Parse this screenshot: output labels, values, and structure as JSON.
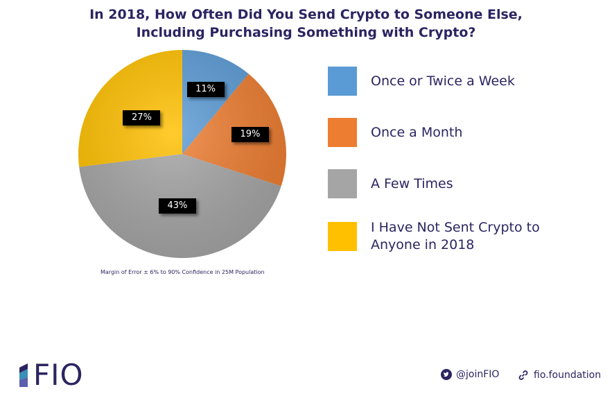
{
  "chart_data": {
    "type": "pie",
    "title_line1": "In 2018, How Often Did You Send Crypto to Someone Else,",
    "title_line2": "Including Purchasing Something with Crypto?",
    "slices": [
      {
        "label": "Once or Twice a Week",
        "value": 11,
        "value_label": "11%",
        "color": "#5b9bd5"
      },
      {
        "label": "Once a Month",
        "value": 19,
        "value_label": "19%",
        "color": "#ed7d31"
      },
      {
        "label": "A Few Times",
        "value": 43,
        "value_label": "43%",
        "color": "#a5a5a5"
      },
      {
        "label": "I Have Not Sent Crypto to Anyone in 2018",
        "value": 27,
        "value_label": "27%",
        "color": "#ffc000"
      }
    ],
    "legend_position": "right",
    "note": "Margin of Error ± 6% to 90% Confidence in 25M Population"
  },
  "footer": {
    "logo_text": "FIO",
    "twitter_icon": "twitter-icon",
    "twitter": "@joinFIO",
    "link_icon": "link-icon",
    "website": "fio.foundation"
  }
}
